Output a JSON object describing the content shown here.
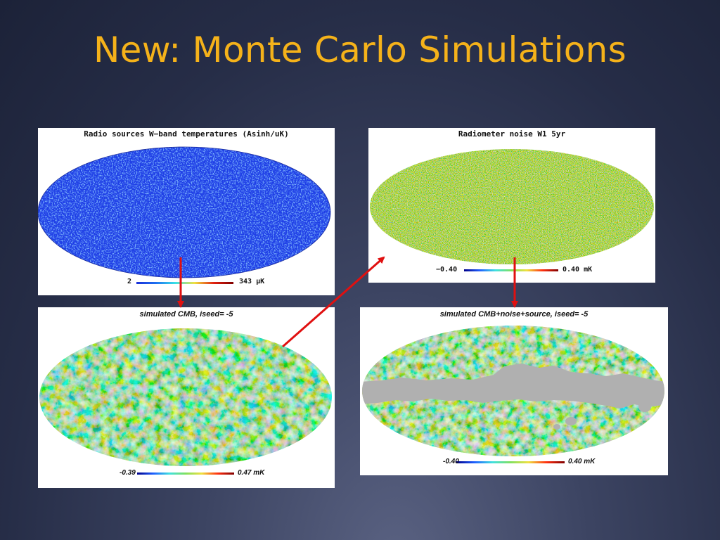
{
  "slide": {
    "title": "New: Monte Carlo Simulations"
  },
  "panels": {
    "radio": {
      "title": "Radio sources W−band temperatures (Asinh/uK)",
      "cbar_min": "2",
      "cbar_max": "343 μK",
      "colormap": [
        "#1a2fd8",
        "#1e6ff0",
        "#38e0e8",
        "#f0e040",
        "#e02010",
        "#800000"
      ]
    },
    "noise": {
      "title": "Radiometer noise W1 5yr",
      "cbar_min": "−0.40",
      "cbar_max": "0.40 mK",
      "colormap": [
        "#00008a",
        "#2060ff",
        "#40e0e0",
        "#80e060",
        "#f0e040",
        "#ff3010",
        "#800000"
      ]
    },
    "cmb": {
      "title": "simulated CMB, iseed= -5",
      "cbar_min": "-0.39",
      "cbar_max": "0.47 mK",
      "colormap": [
        "#00008a",
        "#2060ff",
        "#40e0e0",
        "#80e060",
        "#f0e040",
        "#ff3010",
        "#800000"
      ]
    },
    "combined": {
      "title": "simulated CMB+noise+source, iseed= -5",
      "cbar_min": "-0.40",
      "cbar_max": "0.40 mK",
      "colormap": [
        "#00008a",
        "#2060ff",
        "#40e0e0",
        "#80e060",
        "#f0e040",
        "#ff3010",
        "#800000"
      ],
      "mask_color": "#b0b0b0"
    }
  },
  "arrow_color": "#e01010"
}
